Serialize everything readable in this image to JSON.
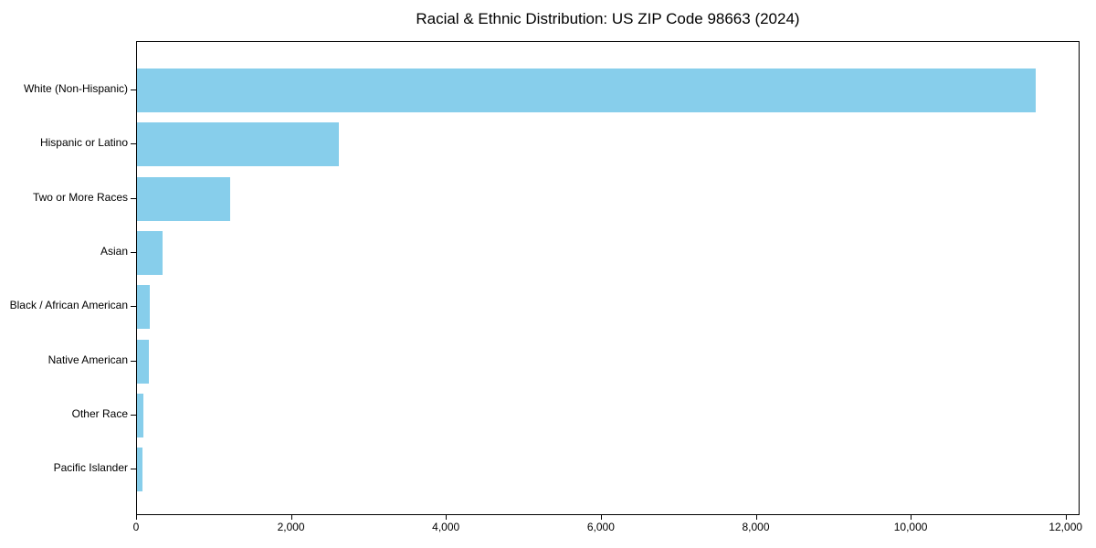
{
  "chart_data": {
    "type": "bar",
    "orientation": "horizontal",
    "title": "Racial & Ethnic Distribution: US ZIP Code 98663 (2024)",
    "categories": [
      "White (Non-Hispanic)",
      "Hispanic or Latino",
      "Two or More Races",
      "Asian",
      "Black / African American",
      "Native American",
      "Other Race",
      "Pacific Islander"
    ],
    "values": [
      11600,
      2610,
      1200,
      330,
      170,
      150,
      85,
      70
    ],
    "xlabel": "",
    "ylabel": "",
    "xlim": [
      0,
      12180
    ],
    "x_ticks": [
      0,
      2000,
      4000,
      6000,
      8000,
      10000,
      12000
    ],
    "x_tick_labels": [
      "0",
      "2,000",
      "4,000",
      "6,000",
      "8,000",
      "10,000",
      "12,000"
    ],
    "bar_color": "#87CEEB",
    "background_color": "#FFFFFF",
    "text_color": "#000000",
    "grid": false,
    "legend": "none"
  }
}
